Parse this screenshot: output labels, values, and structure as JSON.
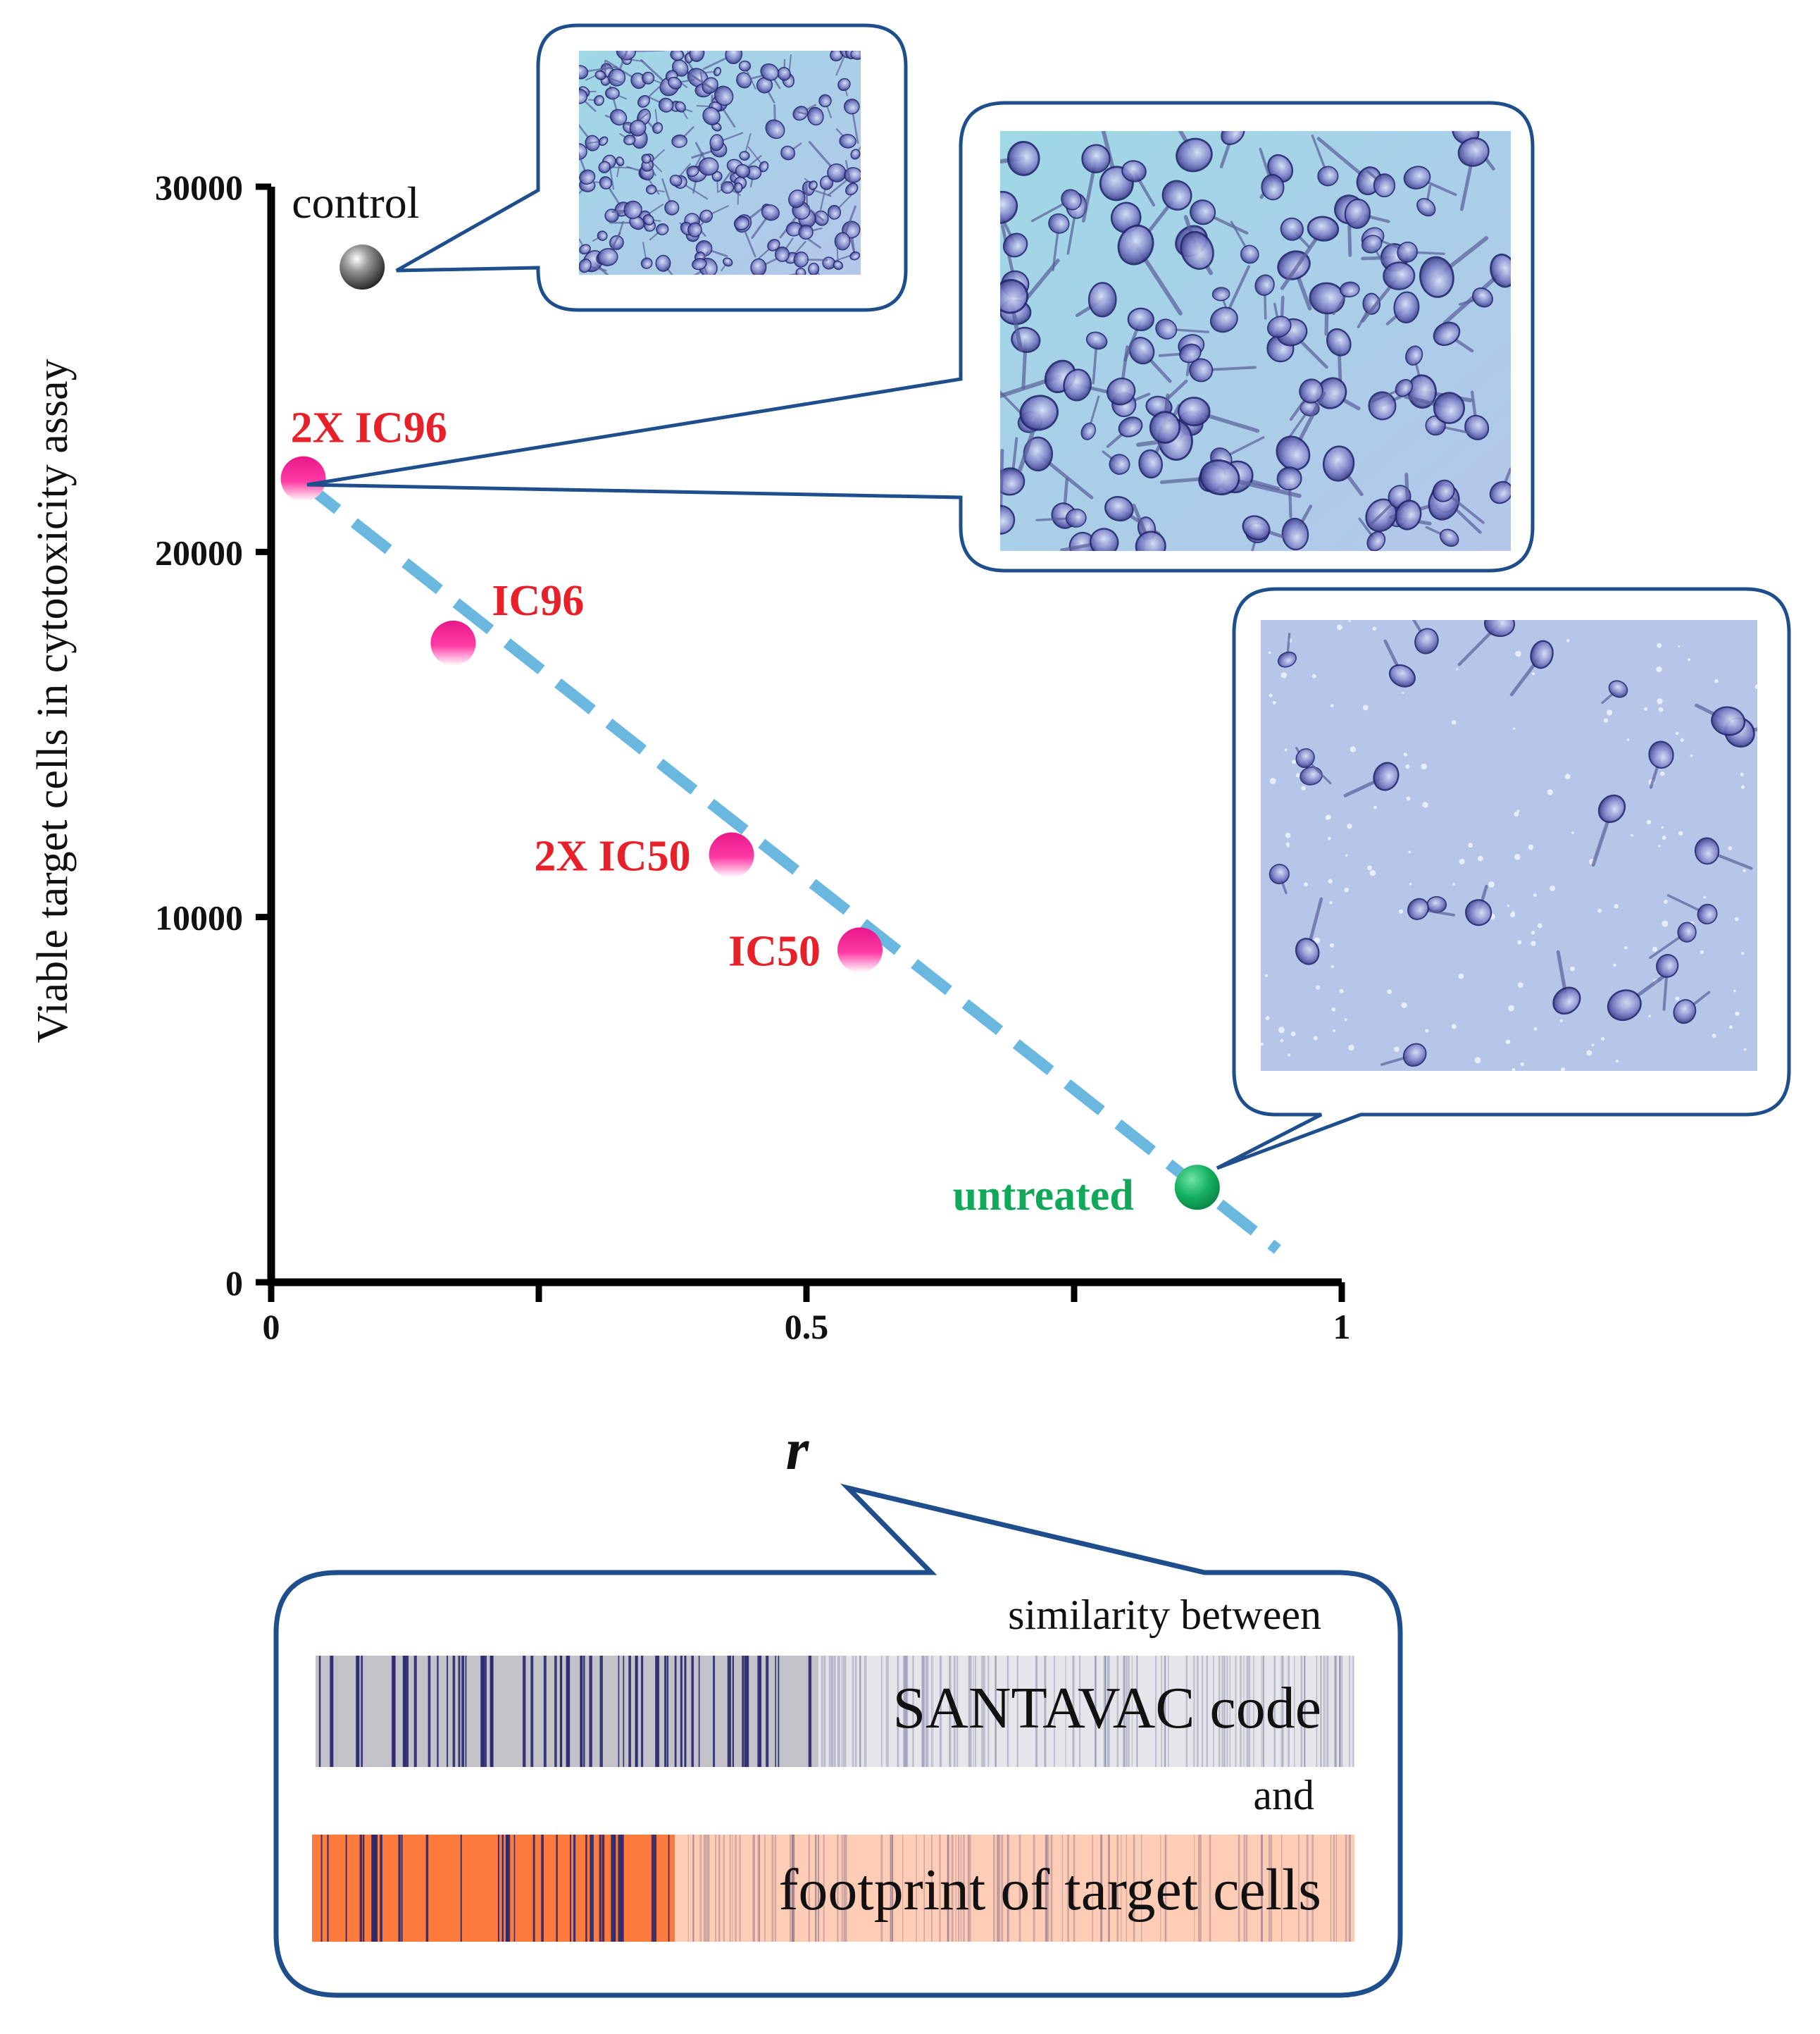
{
  "chart_data": {
    "type": "scatter",
    "title": "",
    "xlabel": "r",
    "ylabel": "Viable target cells in cytotoxicity assay",
    "xlim": [
      0,
      1
    ],
    "ylim": [
      0,
      30000
    ],
    "x_ticks": [
      {
        "value": 0,
        "label": "0"
      },
      {
        "value": 0.5,
        "label": "0.5"
      },
      {
        "value": 1,
        "label": "1"
      }
    ],
    "x_minor_ticks": [
      0.25,
      0.75
    ],
    "y_ticks": [
      {
        "value": 0,
        "label": "0"
      },
      {
        "value": 10000,
        "label": "10000"
      },
      {
        "value": 20000,
        "label": "20000"
      },
      {
        "value": 30000,
        "label": "30000"
      }
    ],
    "grid": false,
    "points": [
      {
        "label": "control",
        "x": 0.085,
        "y": 27800,
        "color": "#2b2b2b",
        "label_color": "#111111"
      },
      {
        "label": "2X IC96",
        "x": 0.03,
        "y": 22000,
        "color": "#ff1493",
        "label_color": "#e8202a"
      },
      {
        "label": "IC96",
        "x": 0.17,
        "y": 17500,
        "color": "#ff1493",
        "label_color": "#e8202a"
      },
      {
        "label": "2X IC50",
        "x": 0.43,
        "y": 11700,
        "color": "#ff1493",
        "label_color": "#e8202a"
      },
      {
        "label": "IC50",
        "x": 0.55,
        "y": 9100,
        "color": "#ff1493",
        "label_color": "#e8202a"
      },
      {
        "label": "untreated",
        "x": 0.865,
        "y": 2600,
        "color": "#12a85a",
        "label_color": "#12a85a"
      }
    ],
    "trendline": {
      "style": "dashed",
      "color": "#6ab8e0",
      "from": {
        "x": 0.03,
        "y": 21900
      },
      "to": {
        "x": 0.94,
        "y": 900
      }
    }
  },
  "callout": {
    "line1": "similarity between",
    "bar1_label": "SANTAVAC code",
    "line2": "and",
    "bar2_label": "footprint of target cells"
  },
  "colors": {
    "axis": "#000000",
    "callout_border": "#1f4e8c",
    "micrograph_bg": "#8fd0df",
    "cell_stain": "#3d3f9a",
    "bar1_dark": "#c2c2c8",
    "bar1_light": "#e6e6ea",
    "bar1_lines": "#2a2a70",
    "bar2_dark": "#ff7a3d",
    "bar2_light": "#ffcdb5",
    "bar2_lines": "#2a2a70"
  }
}
